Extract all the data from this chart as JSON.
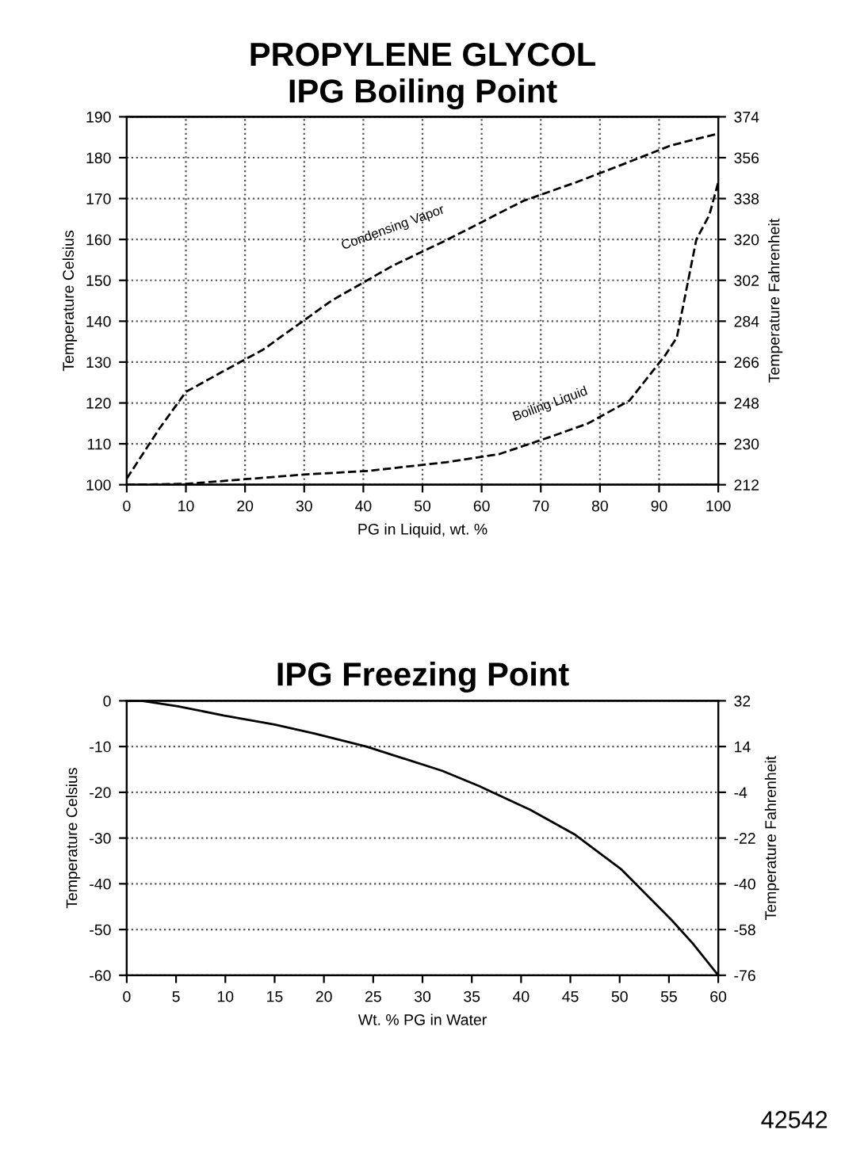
{
  "chart_data": [
    {
      "type": "line",
      "title": "PROPYLENE GLYCOL",
      "subtitle": "IPG Boiling Point",
      "xlabel": "PG in Liquid, wt. %",
      "ylabel": "Temperature Celsius",
      "y2label": "Temperature Fahrenheit",
      "xlim": [
        0,
        100
      ],
      "xticks": [
        0,
        10,
        20,
        30,
        40,
        50,
        60,
        70,
        80,
        90,
        100
      ],
      "ylim": [
        100,
        190
      ],
      "yticks": [
        100,
        110,
        120,
        130,
        140,
        150,
        160,
        170,
        180,
        190
      ],
      "y2lim": [
        212,
        374
      ],
      "y2ticks": [
        212,
        230,
        248,
        266,
        284,
        302,
        320,
        338,
        356,
        374
      ],
      "grid": true,
      "line_style": "dashed",
      "series": [
        {
          "name": "Condensing Vapor",
          "color": "#000000",
          "x": [
            0,
            5.5,
            10,
            16,
            23,
            34.6,
            45,
            54,
            67,
            76,
            85,
            92,
            100
          ],
          "values": [
            101.5,
            113.7,
            122.7,
            127.5,
            133,
            145,
            153.6,
            159.8,
            169.4,
            174,
            179,
            183,
            185.9
          ]
        },
        {
          "name": "Boiling Liquid",
          "color": "#000000",
          "x": [
            0,
            10,
            20.5,
            30,
            41,
            54,
            63,
            71.6,
            78,
            85,
            91,
            93,
            96.3,
            98.5,
            100
          ],
          "values": [
            100,
            100.2,
            101.4,
            102.5,
            103.4,
            105.5,
            107.5,
            111.7,
            115,
            120.6,
            131.6,
            136,
            160,
            166,
            174
          ]
        }
      ]
    },
    {
      "type": "line",
      "title": "IPG Freezing Point",
      "xlabel": "Wt. % PG in Water",
      "ylabel": "Temperature Celsius",
      "y2label": "Temperature Fahrenheit",
      "xlim": [
        0,
        60
      ],
      "xticks": [
        0,
        5,
        10,
        15,
        20,
        25,
        30,
        35,
        40,
        45,
        50,
        55,
        60
      ],
      "ylim": [
        -60,
        0
      ],
      "yticks": [
        -60,
        -50,
        -40,
        -30,
        -20,
        -10,
        0
      ],
      "y2lim": [
        -76,
        32
      ],
      "y2ticks": [
        -76,
        -58,
        -40,
        -22,
        -4,
        14,
        32
      ],
      "grid": "y",
      "line_style": "solid",
      "annotations": [
        "42542"
      ],
      "series": [
        {
          "color": "#000000",
          "x": [
            0,
            1.5,
            5.2,
            9.8,
            15,
            19.1,
            24.3,
            32,
            35.7,
            40.9,
            45.5,
            50.2,
            55.3,
            57.4,
            60
          ],
          "values": [
            0,
            0,
            -1.2,
            -3.2,
            -5.2,
            -7.2,
            -10,
            -15.3,
            -18.6,
            -23.8,
            -29.3,
            -36.9,
            -48,
            -53,
            -60
          ]
        }
      ]
    }
  ]
}
